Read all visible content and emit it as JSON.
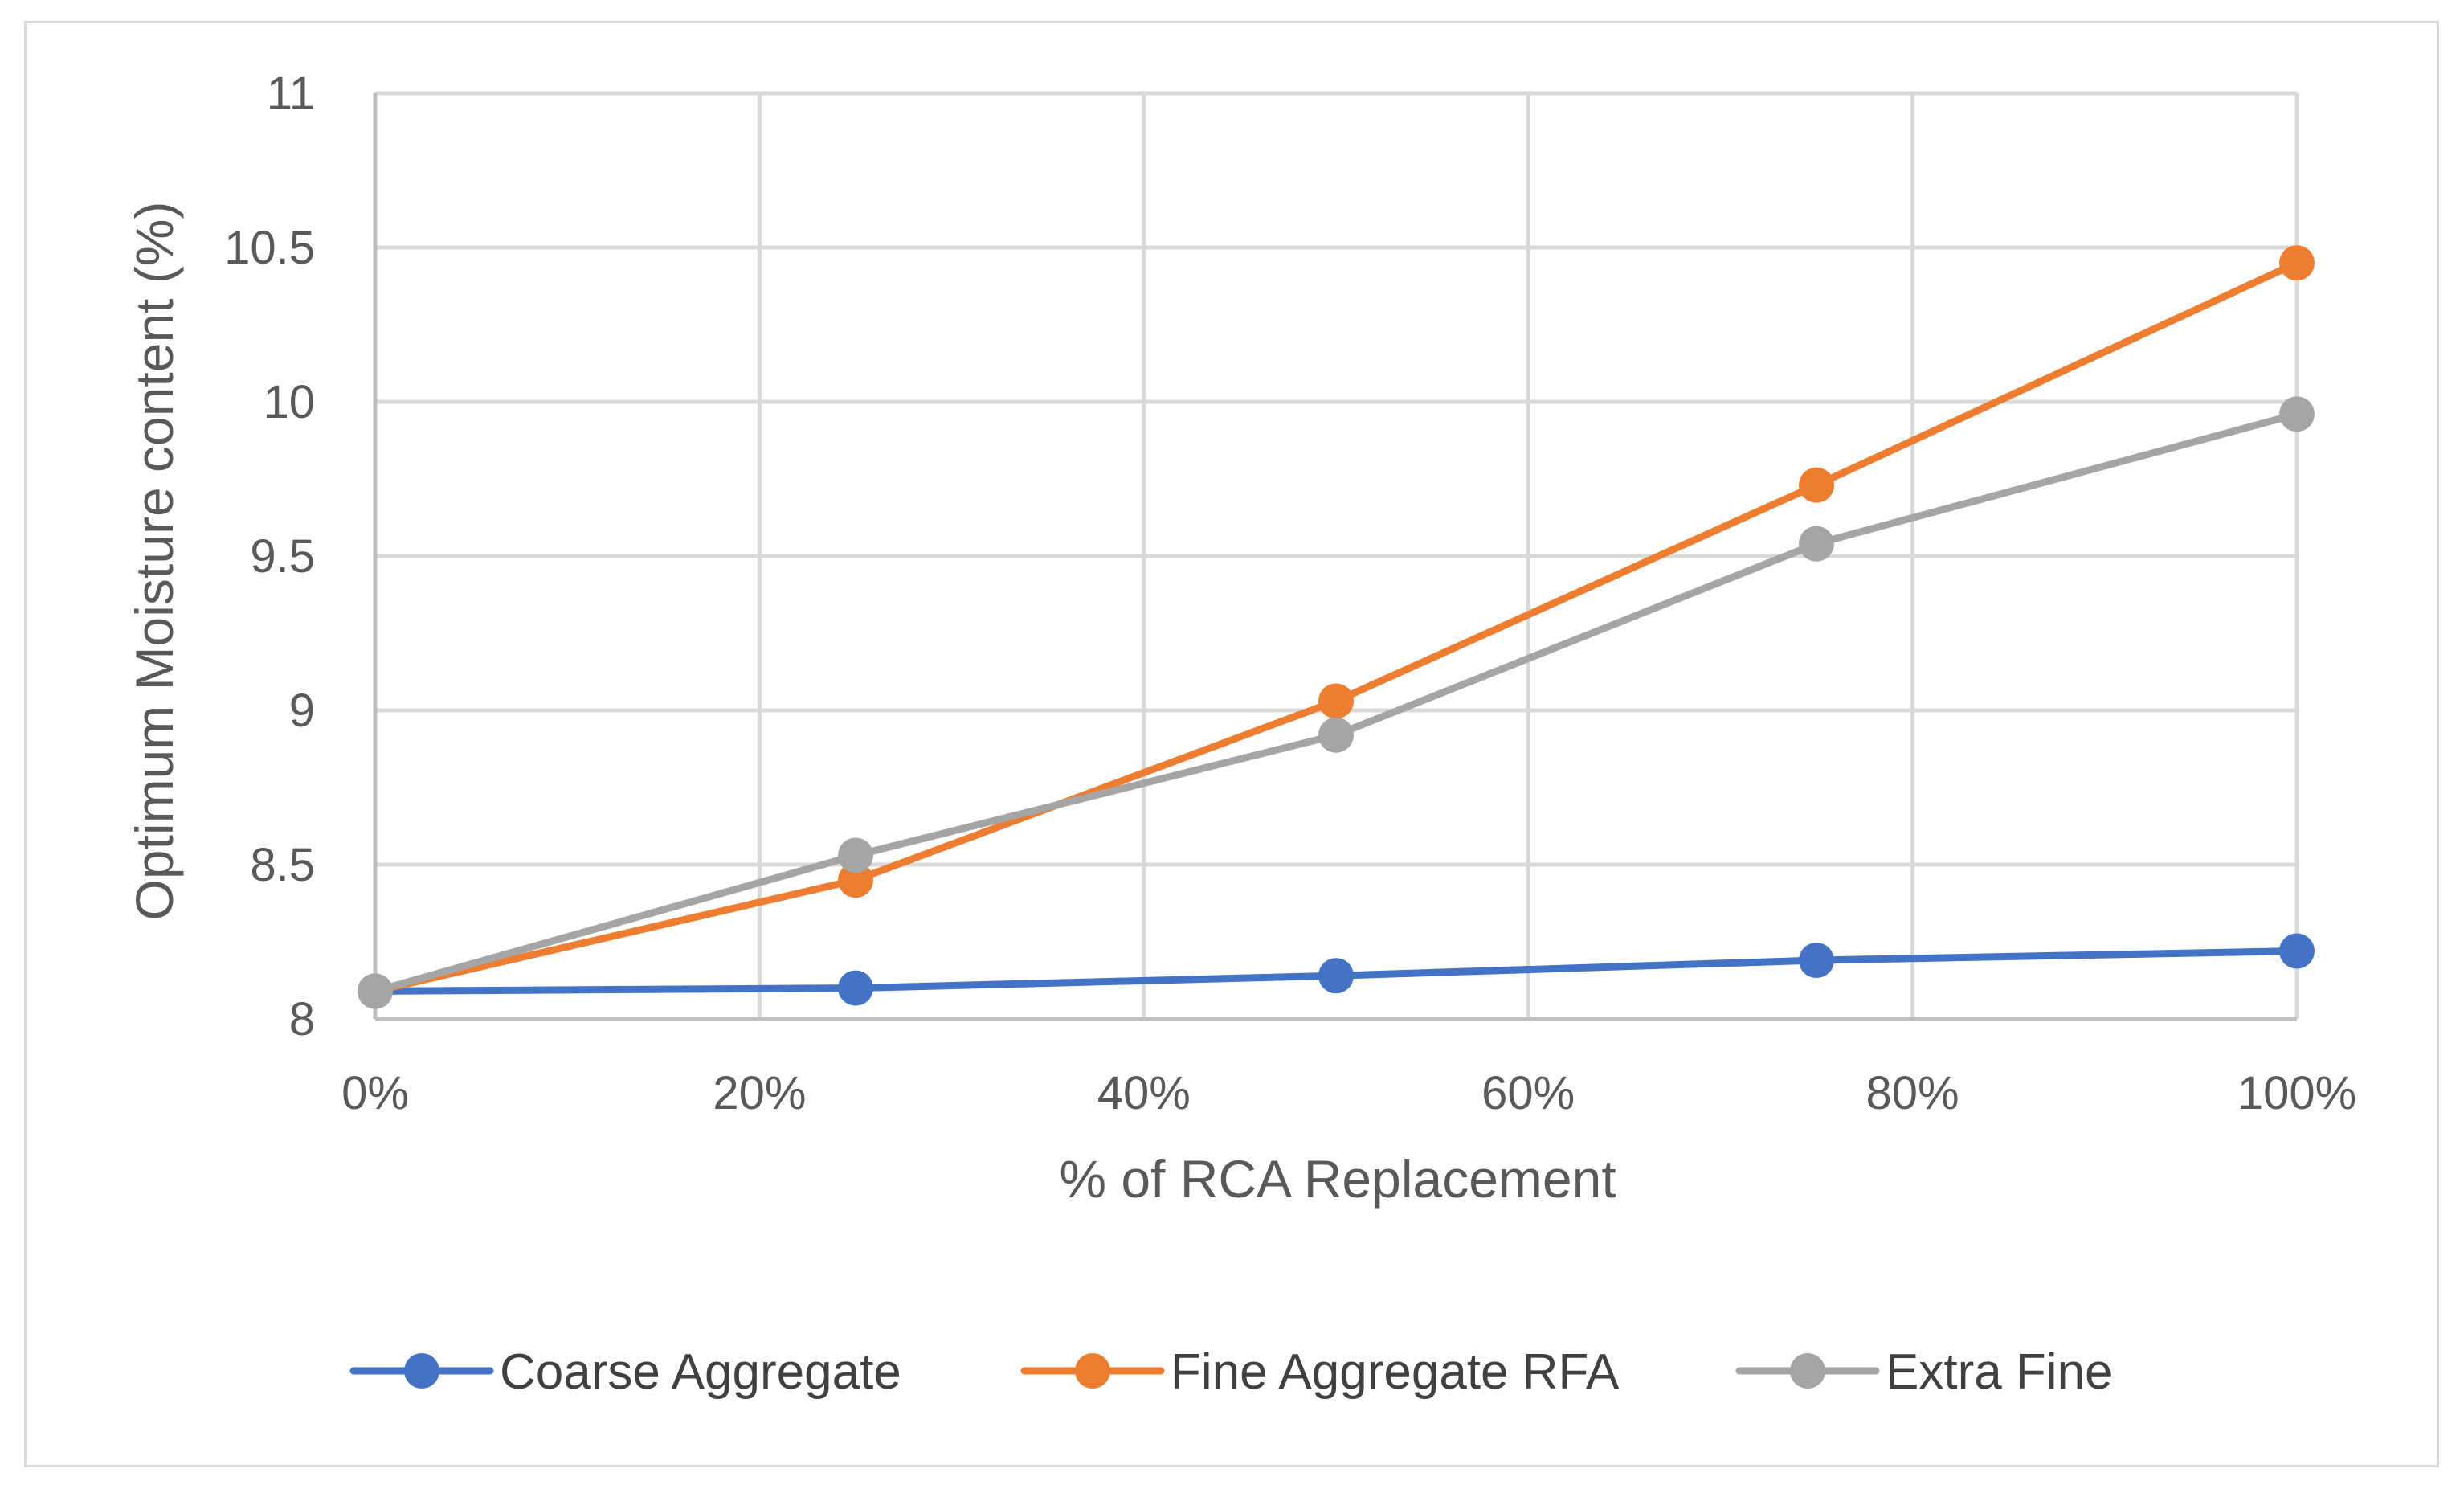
{
  "chart_data": {
    "type": "line",
    "title": "",
    "xlabel": "% of RCA  Replacement",
    "ylabel": "Optimum Moisture content (%)",
    "x": [
      0,
      25,
      50,
      75,
      100
    ],
    "xlim": [
      0,
      100
    ],
    "x_ticks": [
      0,
      20,
      40,
      60,
      80,
      100
    ],
    "x_tick_labels": [
      "0%",
      "20%",
      "40%",
      "60%",
      "80%",
      "100%"
    ],
    "ylim": [
      8,
      11
    ],
    "y_ticks": [
      8,
      8.5,
      9,
      9.5,
      10,
      10.5,
      11
    ],
    "y_tick_labels": [
      "8",
      "8.5",
      "9",
      "9.5",
      "10",
      "10.5",
      "11"
    ],
    "grid": true,
    "legend_position": "bottom",
    "series": [
      {
        "name": "Coarse Aggregate",
        "color": "#4472c4",
        "values": [
          8.09,
          8.1,
          8.14,
          8.19,
          8.22
        ]
      },
      {
        "name": "Fine Aggregate RFA",
        "color": "#ed7d31",
        "values": [
          8.09,
          8.45,
          9.03,
          9.73,
          10.45
        ]
      },
      {
        "name": "Extra Fine",
        "color": "#a5a5a5",
        "values": [
          8.09,
          8.53,
          8.92,
          9.54,
          9.96
        ]
      }
    ]
  }
}
